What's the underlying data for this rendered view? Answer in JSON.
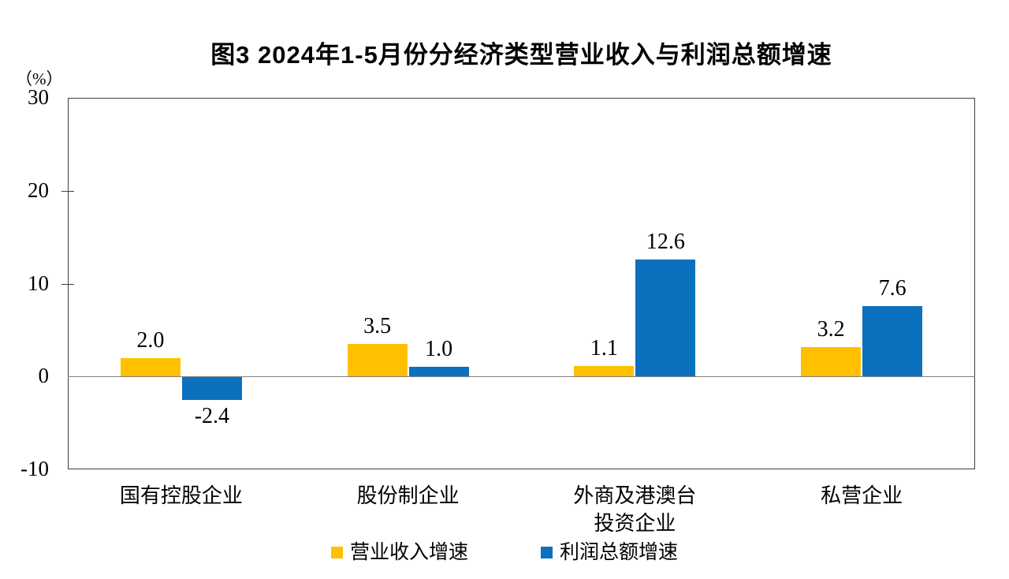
{
  "chart_data": {
    "type": "bar",
    "title": "图3 2024年1-5月份分经济类型营业收入与利润总额增速",
    "unit_label": "（%）",
    "categories": [
      "国有控股企业",
      "股份制企业",
      "外商及港澳台\n投资企业",
      "私营企业"
    ],
    "series": [
      {
        "name": "营业收入增速",
        "color": "#FFC000",
        "values": [
          2.0,
          3.5,
          1.1,
          3.2
        ]
      },
      {
        "name": "利润总额增速",
        "color": "#0B70BE",
        "values": [
          -2.4,
          1.0,
          12.6,
          7.6
        ]
      }
    ],
    "ylim": [
      -10,
      30
    ],
    "yticks": [
      30,
      20,
      10,
      0,
      -10
    ],
    "grid": false,
    "legend_position": "bottom"
  }
}
